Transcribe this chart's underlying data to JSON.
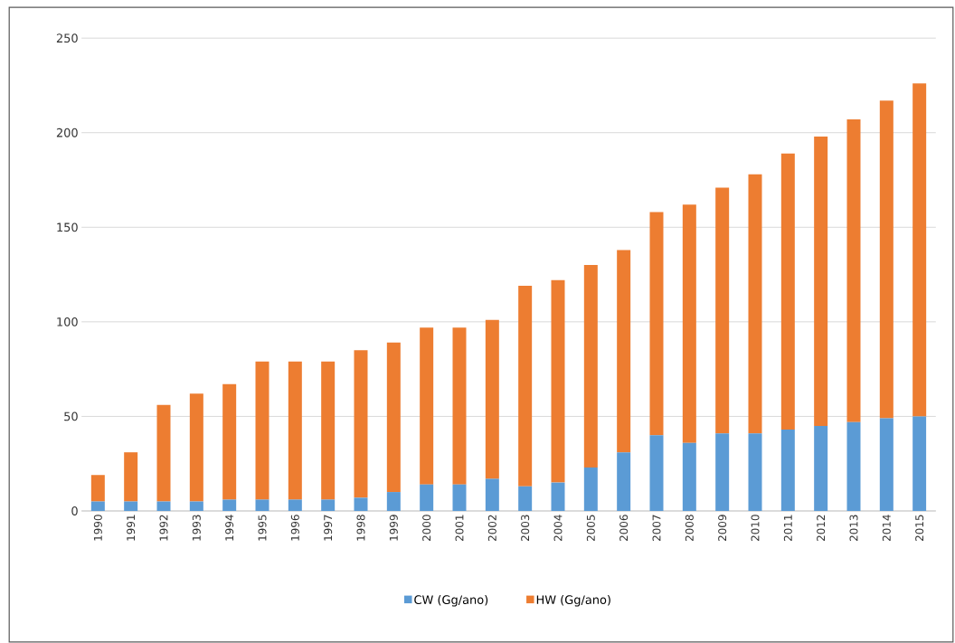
{
  "chart_data": {
    "type": "bar",
    "stacked": true,
    "categories": [
      "1990",
      "1991",
      "1992",
      "1993",
      "1994",
      "1995",
      "1996",
      "1997",
      "1998",
      "1999",
      "2000",
      "2001",
      "2002",
      "2003",
      "2004",
      "2005",
      "2006",
      "2007",
      "2008",
      "2009",
      "2010",
      "2011",
      "2012",
      "2013",
      "2014",
      "2015"
    ],
    "series": [
      {
        "name": "CW (Gg/ano)",
        "color": "#5b9bd5",
        "values": [
          5,
          5,
          5,
          5,
          6,
          6,
          6,
          6,
          7,
          10,
          14,
          14,
          17,
          13,
          15,
          23,
          31,
          40,
          36,
          41,
          41,
          43,
          45,
          47,
          49,
          50
        ]
      },
      {
        "name": "HW (Gg/ano)",
        "color": "#ed7d31",
        "values": [
          14,
          26,
          51,
          57,
          61,
          73,
          73,
          73,
          78,
          79,
          83,
          83,
          84,
          106,
          107,
          107,
          107,
          118,
          126,
          130,
          137,
          146,
          153,
          160,
          168,
          176
        ]
      }
    ],
    "ylim": [
      0,
      250
    ],
    "yticks": [
      0,
      50,
      100,
      150,
      200,
      250
    ],
    "grid": "y",
    "legend": "bottom"
  }
}
